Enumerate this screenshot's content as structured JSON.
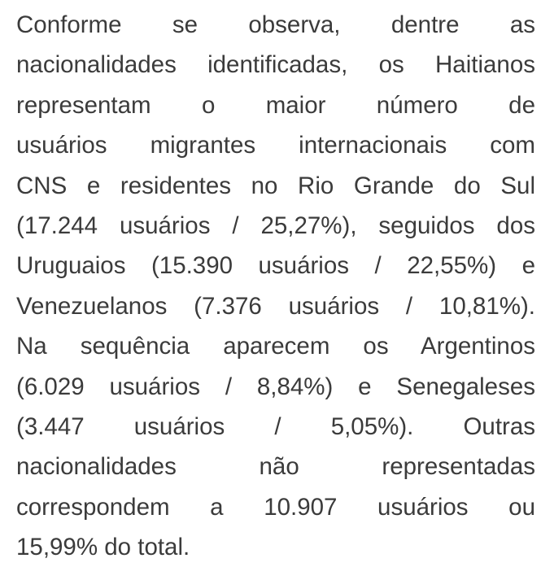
{
  "paragraph": {
    "lines": [
      "Conforme se observa, dentre as",
      "nacionalidades identificadas, os Haitianos",
      "representam o maior número de",
      "usuários migrantes internacionais com",
      "CNS e residentes no Rio Grande do Sul",
      "(17.244 usuários / 25,27%), seguidos dos",
      "Uruguaios (15.390 usuários / 22,55%) e",
      "Venezuelanos (7.376 usuários / 10,81%).",
      "Na sequência aparecem os Argentinos",
      "(6.029 usuários / 8,84%) e Senegaleses",
      "(3.447 usuários / 5,05%). Outras",
      "nacionalidades não representadas",
      "correspondem a 10.907 usuários ou",
      "15,99% do total."
    ]
  }
}
